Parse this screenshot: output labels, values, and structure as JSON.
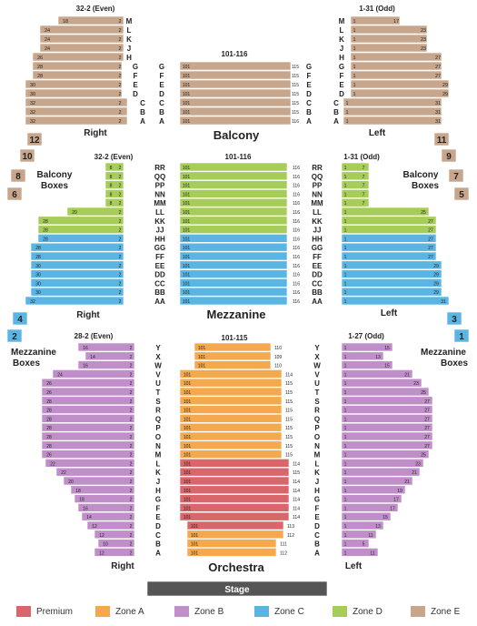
{
  "colors": {
    "premium": "#d9666b",
    "zone_a": "#f4a94f",
    "zone_b": "#c08fc9",
    "zone_c": "#5bb5e3",
    "zone_d": "#a6cc59",
    "zone_e": "#c8a68b",
    "stage": "#555555",
    "row_text": "#222222"
  },
  "sections": {
    "balcony": {
      "label": "Balcony",
      "side_right": "Right",
      "side_left": "Left",
      "center_range": "101-116",
      "right_range": "32-2 (Even)",
      "left_range": "1-31 (Odd)",
      "rows_top": [
        "M",
        "L",
        "K",
        "J",
        "H"
      ],
      "rows_main": [
        "G",
        "F",
        "E",
        "D",
        "C",
        "B",
        "A"
      ],
      "right_top_first": [
        "18",
        "24",
        "24",
        "24",
        "26"
      ],
      "right_top_last": [
        "2",
        "2",
        "2",
        "2",
        "2"
      ],
      "left_top_last": [
        "17",
        "23",
        "23",
        "23",
        "27"
      ],
      "right_main_first": [
        "28",
        "28",
        "30",
        "30",
        "32",
        "32",
        "32"
      ],
      "left_main_last": [
        "27",
        "27",
        "29",
        "29",
        "31",
        "31",
        "31"
      ],
      "center_first": "101",
      "center_last": [
        "115",
        "115",
        "115",
        "115",
        "115",
        "115",
        "116"
      ],
      "box_numbers": [
        "12",
        "10",
        "11",
        "9",
        "8",
        "7",
        "6",
        "5"
      ]
    },
    "mezzanine": {
      "label": "Mezzanine",
      "side_right": "Right",
      "side_left": "Left",
      "center_range": "101-116",
      "right_range": "32-2 (Even)",
      "left_range": "1-31 (Odd)",
      "rows": [
        "RR",
        "QQ",
        "PP",
        "NN",
        "MM",
        "LL",
        "KK",
        "JJ",
        "HH",
        "GG",
        "FF",
        "EE",
        "DD",
        "CC",
        "BB",
        "AA"
      ],
      "boxes_label_left": "Balcony\nBoxes",
      "boxes_label_right": "Balcony\nBoxes",
      "box_numbers": [
        "4",
        "3",
        "2",
        "1"
      ]
    },
    "orchestra": {
      "label": "Orchestra",
      "side_right": "Right",
      "side_left": "Left",
      "center_range": "101-115",
      "right_range": "28-2 (Even)",
      "left_range": "1-27 (Odd)",
      "rows": [
        "Y",
        "X",
        "W",
        "V",
        "U",
        "T",
        "S",
        "R",
        "Q",
        "P",
        "O",
        "N",
        "M",
        "L",
        "K",
        "J",
        "H",
        "G",
        "F",
        "E",
        "D",
        "C",
        "B",
        "A"
      ],
      "boxes_label_left": "Mezzanine\nBoxes",
      "boxes_label_right": "Mezzanine\nBoxes"
    }
  },
  "stage_label": "Stage",
  "legend": [
    {
      "label": "Premium",
      "color": "#d9666b"
    },
    {
      "label": "Zone A",
      "color": "#f4a94f"
    },
    {
      "label": "Zone B",
      "color": "#c08fc9"
    },
    {
      "label": "Zone C",
      "color": "#5bb5e3"
    },
    {
      "label": "Zone D",
      "color": "#a6cc59"
    },
    {
      "label": "Zone E",
      "color": "#c8a68b"
    }
  ]
}
